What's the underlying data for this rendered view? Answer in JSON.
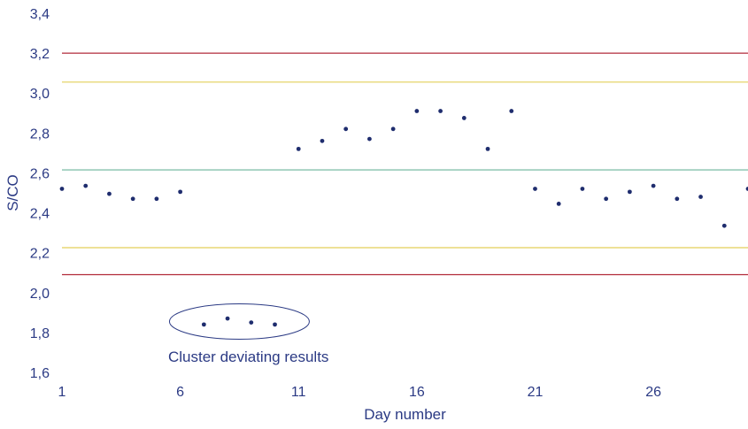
{
  "chart_data": {
    "type": "scatter",
    "xlabel": "Day number",
    "ylabel": "S/CO",
    "xlim": [
      1,
      30
    ],
    "ylim": [
      1.6,
      3.4
    ],
    "x_ticks": [
      1,
      6,
      11,
      16,
      21,
      26
    ],
    "y_ticks": [
      1.6,
      1.8,
      2.0,
      2.2,
      2.4,
      2.6,
      2.8,
      3.0,
      3.2,
      3.4
    ],
    "y_tick_labels": [
      "1,6",
      "1,8",
      "2,0",
      "2,2",
      "2,4",
      "2,6",
      "2,8",
      "3,0",
      "3,2",
      "3,4"
    ],
    "grid": false,
    "point_color": "#1f2d6e",
    "axis_text_color": "#2b3a84",
    "reference_lines": [
      {
        "y": 3.2,
        "color": "#b22a3a"
      },
      {
        "y": 3.055,
        "color": "#e3cf59"
      },
      {
        "y": 2.615,
        "color": "#6bb39a"
      },
      {
        "y": 2.225,
        "color": "#e3cf59"
      },
      {
        "y": 2.09,
        "color": "#b22a3a"
      }
    ],
    "series": [
      {
        "x": [
          1,
          2,
          3,
          4,
          5,
          6,
          7,
          8,
          9,
          10,
          11,
          12,
          13,
          14,
          15,
          16,
          17,
          18,
          19,
          20,
          21,
          22,
          23,
          24,
          25,
          26,
          27,
          28,
          29,
          30
        ],
        "y": [
          2.52,
          2.535,
          2.495,
          2.47,
          2.47,
          2.505,
          1.84,
          1.87,
          1.85,
          1.84,
          2.72,
          2.76,
          2.82,
          2.77,
          2.82,
          2.91,
          2.91,
          2.875,
          2.72,
          2.91,
          2.52,
          2.445,
          2.52,
          2.47,
          2.505,
          2.535,
          2.47,
          2.48,
          2.335,
          2.52
        ]
      }
    ],
    "annotation": {
      "text": "Cluster deviating results",
      "ellipse_color": "#2b3a84"
    }
  }
}
